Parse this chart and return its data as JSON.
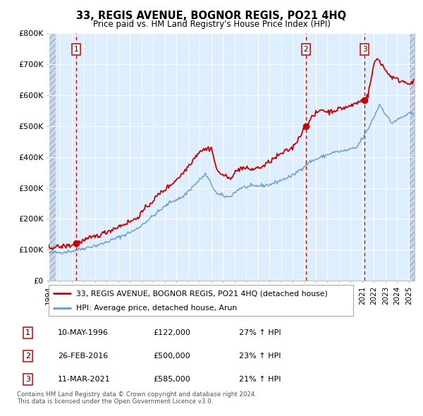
{
  "title": "33, REGIS AVENUE, BOGNOR REGIS, PO21 4HQ",
  "subtitle": "Price paid vs. HM Land Registry's House Price Index (HPI)",
  "sales": [
    {
      "label": "1",
      "date": 1996.36,
      "price": 122000
    },
    {
      "label": "2",
      "date": 2016.15,
      "price": 500000
    },
    {
      "label": "3",
      "date": 2021.19,
      "price": 585000
    }
  ],
  "legend_line1": "33, REGIS AVENUE, BOGNOR REGIS, PO21 4HQ (detached house)",
  "legend_line2": "HPI: Average price, detached house, Arun",
  "table": [
    {
      "num": "1",
      "date": "10-MAY-1996",
      "price": "£122,000",
      "pct": "27% ↑ HPI"
    },
    {
      "num": "2",
      "date": "26-FEB-2016",
      "price": "£500,000",
      "pct": "23% ↑ HPI"
    },
    {
      "num": "3",
      "date": "11-MAR-2021",
      "price": "£585,000",
      "pct": "21% ↑ HPI"
    }
  ],
  "footer": "Contains HM Land Registry data © Crown copyright and database right 2024.\nThis data is licensed under the Open Government Licence v3.0.",
  "red_color": "#cc0000",
  "blue_color": "#6699cc",
  "bg_color": "#ddeeff",
  "grid_color": "#ffffff",
  "ylim": [
    0,
    800000
  ],
  "xlim_start": 1994.0,
  "xlim_end": 2025.5,
  "hatch_left_end": 1994.58,
  "hatch_right_start": 2025.08
}
